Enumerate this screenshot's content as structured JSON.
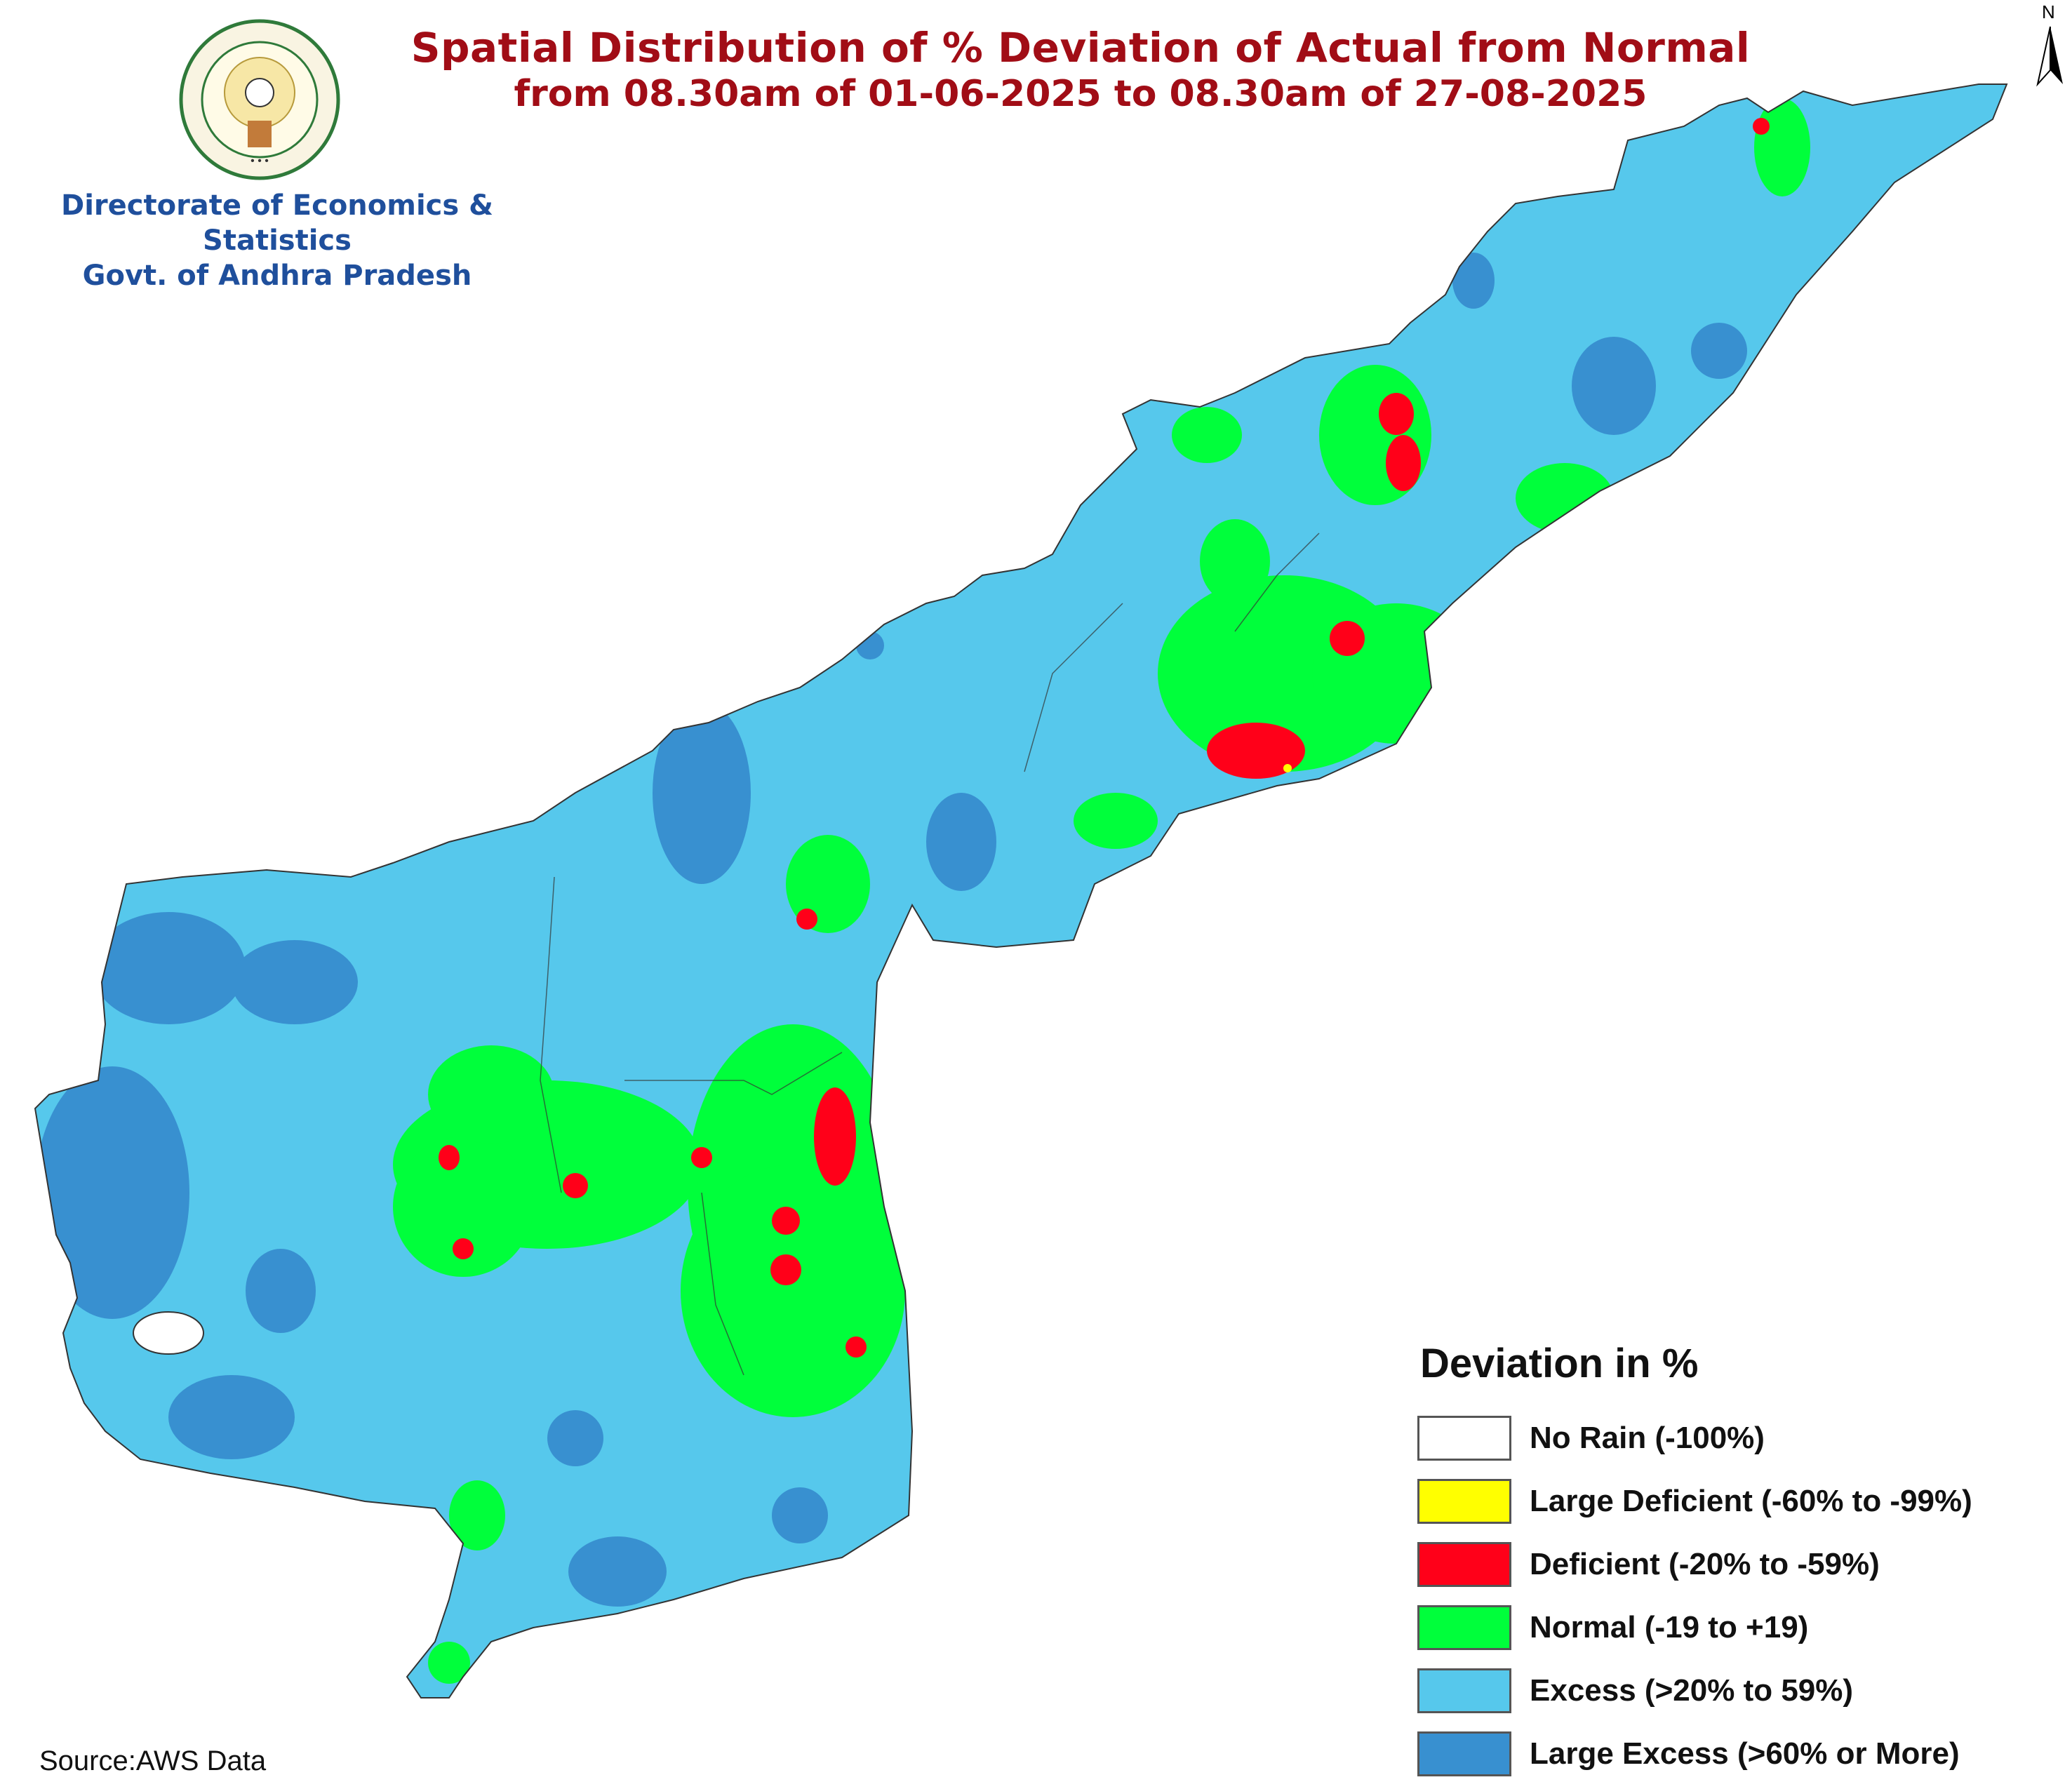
{
  "title": "Spatial Distribution of % Deviation of Actual from Normal",
  "subtitle": "from 08.30am of 01-06-2025 to 08.30am of 27-08-2025",
  "organization": {
    "line1": "Directorate of Economics & Statistics",
    "line2": "Govt. of Andhra Pradesh",
    "emblem": "andhra-pradesh-state-emblem"
  },
  "north_arrow": {
    "label": "N"
  },
  "legend": {
    "title": "Deviation in %",
    "items": [
      {
        "label": "No Rain (-100%)",
        "color": "#ffffff"
      },
      {
        "label": "Large Deficient (-60% to -99%)",
        "color": "#ffff00"
      },
      {
        "label": "Deficient (-20% to -59%)",
        "color": "#ff0019"
      },
      {
        "label": "Normal (-19 to +19)",
        "color": "#00ff3b"
      },
      {
        "label": "Excess (>20% to 59%)",
        "color": "#56c8ec"
      },
      {
        "label": "Large Excess (>60% or More)",
        "color": "#3890d0"
      }
    ]
  },
  "source": "Source:AWS Data"
}
